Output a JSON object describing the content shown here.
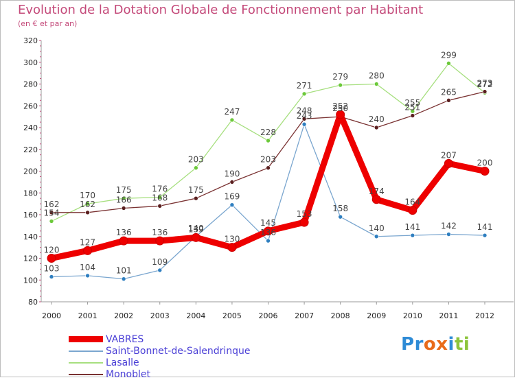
{
  "header": {
    "title": "Evolution de la Dotation Globale de Fonctionnement par Habitant",
    "subtitle": "(en € et par an)"
  },
  "logo": {
    "text": "Proxiti",
    "letters": [
      {
        "ch": "P",
        "color": "#2e8bd6"
      },
      {
        "ch": "r",
        "color": "#2e8bd6"
      },
      {
        "ch": "o",
        "color": "#e96b1a"
      },
      {
        "ch": "x",
        "color": "#e96b1a"
      },
      {
        "ch": "i",
        "color": "#2e8bd6"
      },
      {
        "ch": "t",
        "color": "#8cc43b"
      },
      {
        "ch": "i",
        "color": "#8cc43b"
      }
    ]
  },
  "chart_data": {
    "type": "line",
    "title": "Evolution de la Dotation Globale de Fonctionnement par Habitant",
    "subtitle": "(en € et par an)",
    "xlabel": "",
    "ylabel": "",
    "ylim": [
      80,
      320
    ],
    "yticks": [
      80,
      100,
      120,
      140,
      160,
      180,
      200,
      220,
      240,
      260,
      280,
      300,
      320
    ],
    "grid": false,
    "legend_position": "bottom-left",
    "categories": [
      "2000",
      "2001",
      "2002",
      "2003",
      "2004",
      "2005",
      "2006",
      "2007",
      "2008",
      "2009",
      "2010",
      "2011",
      "2012"
    ],
    "series": [
      {
        "name": "VABRES",
        "color": "#ee0000",
        "dot": "#ee0000",
        "width": "thick",
        "values": [
          120,
          127,
          136,
          136,
          139,
          130,
          145,
          153,
          252,
          174,
          164,
          207,
          200
        ]
      },
      {
        "name": "Saint-Bonnet-de-Salendrinque",
        "color": "#7aa6cf",
        "dot": "#2f7fc0",
        "width": "thin",
        "values": [
          103,
          104,
          101,
          109,
          140,
          169,
          136,
          243,
          158,
          140,
          141,
          142,
          141
        ]
      },
      {
        "name": "Lasalle",
        "color": "#a6df7e",
        "dot": "#6cc93a",
        "width": "thin",
        "values": [
          154,
          170,
          175,
          176,
          203,
          247,
          228,
          271,
          279,
          280,
          255,
          299,
          272
        ]
      },
      {
        "name": "Monoblet",
        "color": "#7a3232",
        "dot": "#5a1f1f",
        "width": "thin",
        "values": [
          162,
          162,
          166,
          168,
          175,
          190,
          203,
          248,
          250,
          240,
          251,
          265,
          273
        ]
      }
    ]
  }
}
